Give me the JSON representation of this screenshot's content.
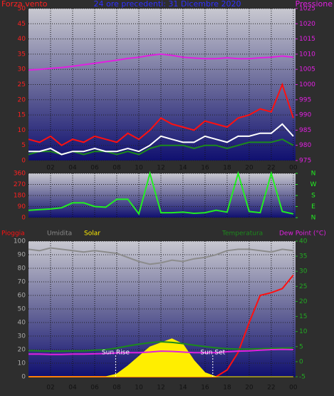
{
  "chart_data": [
    {
      "type": "line",
      "title": "24 ore precedenti: 31 Dicembre 2020",
      "ylabel": "Forza vento",
      "y2label": "Pressione",
      "x": [
        0,
        1,
        2,
        3,
        4,
        5,
        6,
        7,
        8,
        9,
        10,
        11,
        12,
        13,
        14,
        15,
        16,
        17,
        18,
        19,
        20,
        21,
        22,
        23,
        24
      ],
      "xlim": [
        0,
        24.2
      ],
      "xticks": [
        {
          "value": 2,
          "label": "02"
        },
        {
          "value": 4,
          "label": "04"
        },
        {
          "value": 6,
          "label": "06"
        },
        {
          "value": 8,
          "label": "08"
        },
        10,
        12,
        14,
        16,
        18,
        20,
        22,
        {
          "value": 24,
          "label": "00"
        }
      ],
      "ylim": [
        0,
        50
      ],
      "yticks": [
        0,
        5,
        10,
        15,
        20,
        25,
        30,
        35,
        40,
        45,
        50
      ],
      "y2lim": [
        975,
        1025
      ],
      "y2ticks": [
        975,
        980,
        985,
        990,
        995,
        1000,
        1005,
        1010,
        1015,
        1020,
        1025
      ],
      "grid": true,
      "series": [
        {
          "color": "#ff1010",
          "values": [
            7,
            6,
            8,
            5,
            7,
            6,
            8,
            7,
            6,
            9,
            7,
            10,
            14,
            12,
            11,
            10,
            13,
            12,
            11,
            14,
            15,
            17,
            16,
            25,
            14
          ]
        },
        {
          "color": "#1c8a1c",
          "values": [
            2,
            3,
            3,
            2,
            3,
            2,
            3,
            3,
            2,
            3,
            2,
            4,
            5,
            5,
            5,
            4,
            5,
            5,
            4,
            5,
            6,
            6,
            6,
            7,
            5
          ]
        },
        {
          "color": "#ffffff",
          "values": [
            3,
            3,
            4,
            2,
            3,
            3,
            4,
            3,
            3,
            4,
            3,
            5,
            8,
            7,
            6,
            6,
            8,
            7,
            6,
            8,
            8,
            9,
            9,
            12,
            8
          ]
        },
        {
          "color": "#e020e0",
          "axis": "y2",
          "values": [
            1004.8,
            1005,
            1005.3,
            1005.6,
            1006,
            1006.5,
            1007,
            1007.5,
            1008,
            1008.6,
            1009,
            1009.6,
            1010,
            1009.6,
            1009,
            1008.7,
            1008.5,
            1008.5,
            1008.8,
            1008.5,
            1008.5,
            1008.8,
            1009,
            1009.4,
            1009
          ]
        }
      ]
    },
    {
      "type": "line",
      "x": [
        0,
        1,
        2,
        3,
        4,
        5,
        6,
        7,
        8,
        9,
        10,
        11,
        12,
        13,
        14,
        15,
        16,
        17,
        18,
        19,
        20,
        21,
        22,
        23,
        24
      ],
      "xlim": [
        0,
        24.2
      ],
      "ylim": [
        0,
        360
      ],
      "yticks": [
        0,
        90,
        180,
        270,
        360
      ],
      "y2lim": [
        0,
        360
      ],
      "y2ticks": [
        {
          "value": 360,
          "label": "N"
        },
        {
          "value": 270,
          "label": "W"
        },
        {
          "value": 180,
          "label": "S"
        },
        {
          "value": 90,
          "label": "E"
        },
        {
          "value": 0,
          "label": "N"
        }
      ],
      "grid": true,
      "series": [
        {
          "color": "#22ee22",
          "values": [
            60,
            65,
            70,
            80,
            120,
            120,
            90,
            85,
            150,
            150,
            30,
            360,
            40,
            40,
            45,
            35,
            40,
            60,
            45,
            360,
            50,
            40,
            360,
            50,
            30
          ]
        }
      ]
    },
    {
      "type": "line",
      "x": [
        0,
        1,
        2,
        3,
        4,
        5,
        6,
        7,
        8,
        9,
        10,
        11,
        12,
        13,
        14,
        15,
        16,
        17,
        18,
        19,
        20,
        21,
        22,
        23,
        24
      ],
      "xlim": [
        0,
        24.2
      ],
      "xticks": [
        {
          "value": 2,
          "label": "02"
        },
        {
          "value": 4,
          "label": "04"
        },
        {
          "value": 6,
          "label": "06"
        },
        {
          "value": 8,
          "label": "08"
        },
        10,
        12,
        14,
        16,
        18,
        20,
        22,
        {
          "value": 24,
          "label": "00"
        }
      ],
      "ylim": [
        0,
        100
      ],
      "yticks": [
        0,
        10,
        20,
        30,
        40,
        50,
        60,
        70,
        80,
        90,
        100
      ],
      "y2lim": [
        -5,
        40
      ],
      "y2ticks": [
        -5,
        0,
        5,
        10,
        15,
        20,
        25,
        30,
        35,
        40
      ],
      "grid": true,
      "series": [
        {
          "name": "Pioggia",
          "color": "#ff1010",
          "values": [
            0,
            0,
            0,
            0,
            0,
            0,
            0,
            0,
            0,
            0,
            0,
            0,
            0,
            0,
            0,
            0,
            0,
            0,
            5,
            18,
            40,
            60,
            62,
            65,
            75
          ]
        },
        {
          "name": "Umidita",
          "color": "#8c8c8c",
          "values": [
            94,
            93,
            95,
            94,
            93,
            92,
            93,
            92,
            91,
            88,
            85,
            83,
            84,
            86,
            85,
            87,
            88,
            90,
            93,
            94,
            94,
            93,
            92,
            94,
            93
          ]
        },
        {
          "name": "Solar",
          "color": "#ffee00",
          "fill": true,
          "values": [
            0,
            0,
            0,
            0,
            0,
            0,
            0,
            0,
            2,
            8,
            15,
            22,
            25,
            28,
            24,
            12,
            3,
            0,
            0,
            0,
            0,
            0,
            0,
            0,
            0
          ]
        },
        {
          "name": "Temperatura",
          "color": "#1c8a1c",
          "axis": "y2",
          "values": [
            3.7,
            3.6,
            3.5,
            3.5,
            3.6,
            3.6,
            3.8,
            4,
            4.5,
            5.2,
            5.8,
            6.3,
            6.6,
            6.4,
            6,
            5.5,
            5,
            4.6,
            4.3,
            4.2,
            4.2,
            4.3,
            4.4,
            4.5,
            4.6
          ]
        },
        {
          "name": "Dew Point (°C)",
          "color": "#e020e0",
          "axis": "y2",
          "values": [
            2.5,
            2.5,
            2.4,
            2.4,
            2.5,
            2.5,
            2.6,
            2.7,
            2.9,
            3,
            3,
            3.2,
            3.5,
            3.4,
            3.2,
            3,
            3,
            3,
            3.3,
            3.5,
            3.6,
            3.8,
            4,
            4.1,
            4
          ]
        }
      ],
      "annotations": [
        {
          "text": "Sun Rise",
          "x": 7.9
        },
        {
          "text": "Sun Set",
          "x": 16.7
        }
      ]
    }
  ]
}
